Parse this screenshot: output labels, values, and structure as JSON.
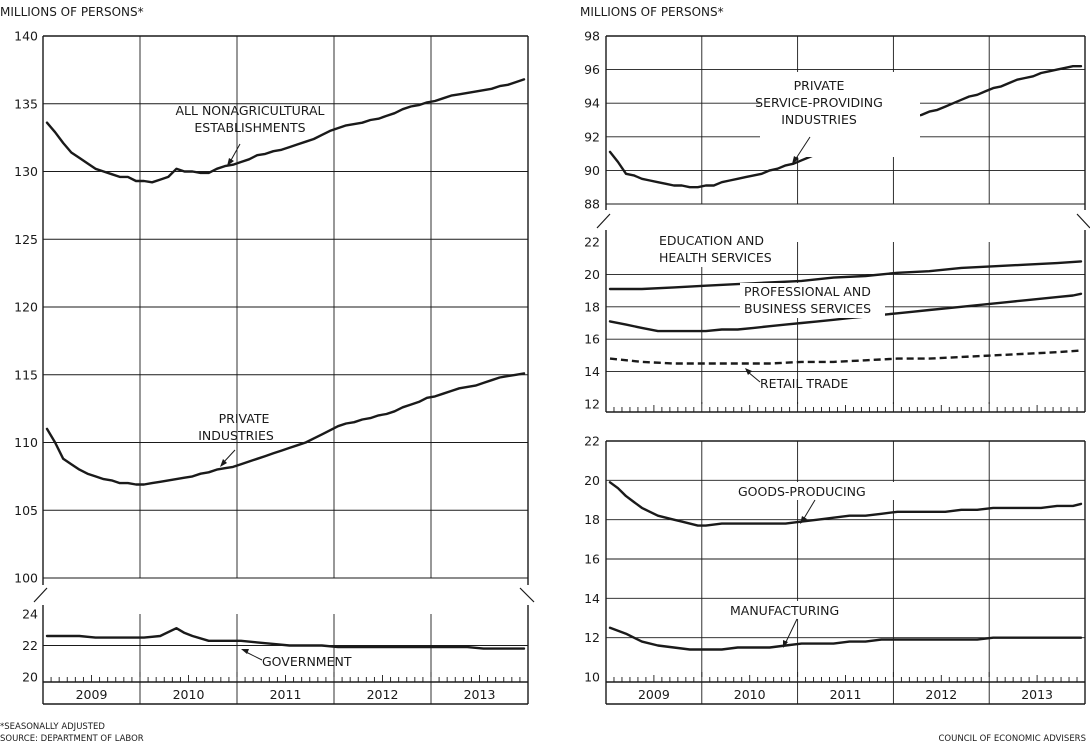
{
  "footnote": "*SEASONALLY ADJUSTED",
  "source": "SOURCE: DEPARTMENT OF LABOR",
  "credit": "COUNCIL OF ECONOMIC ADVISERS",
  "colors": {
    "line": "#1a1a1a",
    "grid": "#1a1a1a",
    "background": "#ffffff"
  },
  "chart_data": [
    {
      "type": "line",
      "panel": "left",
      "ylabel": "MILLIONS OF PERSONS*",
      "categories": [
        "2009",
        "2010",
        "2011",
        "2012",
        "2013"
      ],
      "x_unit": "month index from Jan 2009",
      "ylim": [
        100,
        140
      ],
      "yticks": [
        100,
        105,
        110,
        115,
        120,
        125,
        130,
        135,
        140
      ],
      "grid": true,
      "series": [
        {
          "name": "ALL NONAGRICULTURAL ESTABLISHMENTS",
          "style": "solid",
          "x": [
            0,
            1,
            2,
            3,
            4,
            5,
            6,
            7,
            8,
            9,
            10,
            11,
            12,
            13,
            14,
            15,
            16,
            17,
            18,
            19,
            20,
            21,
            22,
            23,
            24,
            25,
            26,
            27,
            28,
            29,
            30,
            31,
            32,
            33,
            34,
            35,
            36,
            37,
            38,
            39,
            40,
            41,
            42,
            43,
            44,
            45,
            46,
            47,
            48,
            49,
            50,
            51,
            52,
            53,
            54,
            55,
            56,
            57,
            58,
            59
          ],
          "values": [
            133.6,
            132.9,
            132.1,
            131.4,
            131.0,
            130.6,
            130.2,
            130.0,
            129.8,
            129.6,
            129.6,
            129.3,
            129.3,
            129.2,
            129.4,
            129.6,
            130.2,
            130.0,
            130.0,
            129.9,
            129.9,
            130.2,
            130.4,
            130.5,
            130.7,
            130.9,
            131.2,
            131.3,
            131.5,
            131.6,
            131.8,
            132.0,
            132.2,
            132.4,
            132.7,
            133.0,
            133.2,
            133.4,
            133.5,
            133.6,
            133.8,
            133.9,
            134.1,
            134.3,
            134.6,
            134.8,
            134.9,
            135.1,
            135.2,
            135.4,
            135.6,
            135.7,
            135.8,
            135.9,
            136.0,
            136.1,
            136.3,
            136.4,
            136.6,
            136.8
          ]
        },
        {
          "name": "PRIVATE INDUSTRIES",
          "style": "solid",
          "x": [
            0,
            1,
            2,
            3,
            4,
            5,
            6,
            7,
            8,
            9,
            10,
            11,
            12,
            13,
            14,
            15,
            16,
            17,
            18,
            19,
            20,
            21,
            22,
            23,
            24,
            25,
            26,
            27,
            28,
            29,
            30,
            31,
            32,
            33,
            34,
            35,
            36,
            37,
            38,
            39,
            40,
            41,
            42,
            43,
            44,
            45,
            46,
            47,
            48,
            49,
            50,
            51,
            52,
            53,
            54,
            55,
            56,
            57,
            58,
            59
          ],
          "values": [
            111.0,
            110.0,
            108.8,
            108.4,
            108.0,
            107.7,
            107.5,
            107.3,
            107.2,
            107.0,
            107.0,
            106.9,
            106.9,
            107.0,
            107.1,
            107.2,
            107.3,
            107.4,
            107.5,
            107.7,
            107.8,
            108.0,
            108.1,
            108.2,
            108.4,
            108.6,
            108.8,
            109.0,
            109.2,
            109.4,
            109.6,
            109.8,
            110.0,
            110.3,
            110.6,
            110.9,
            111.2,
            111.4,
            111.5,
            111.7,
            111.8,
            112.0,
            112.1,
            112.3,
            112.6,
            112.8,
            113.0,
            113.3,
            113.4,
            113.6,
            113.8,
            114.0,
            114.1,
            114.2,
            114.4,
            114.6,
            114.8,
            114.9,
            115.0,
            115.1
          ]
        }
      ],
      "annotations": [
        {
          "text": "ALL NONAGRICULTURAL",
          "series": "ALL NONAGRICULTURAL ESTABLISHMENTS"
        },
        {
          "text": "ESTABLISHMENTS",
          "series": "ALL NONAGRICULTURAL ESTABLISHMENTS"
        },
        {
          "text": "PRIVATE",
          "series": "PRIVATE INDUSTRIES"
        },
        {
          "text": "INDUSTRIES",
          "series": "PRIVATE INDUSTRIES"
        }
      ]
    },
    {
      "type": "line",
      "panel": "left-bottom",
      "categories": [
        "2009",
        "2010",
        "2011",
        "2012",
        "2013"
      ],
      "ylim": [
        20,
        24
      ],
      "yticks": [
        20,
        22,
        24
      ],
      "grid": true,
      "series": [
        {
          "name": "GOVERNMENT",
          "style": "solid",
          "x": [
            0,
            2,
            4,
            6,
            8,
            10,
            12,
            14,
            16,
            17,
            18,
            20,
            22,
            24,
            26,
            28,
            30,
            32,
            34,
            36,
            38,
            40,
            42,
            44,
            46,
            48,
            50,
            52,
            54,
            56,
            58,
            59
          ],
          "values": [
            22.6,
            22.6,
            22.6,
            22.5,
            22.5,
            22.5,
            22.5,
            22.6,
            23.1,
            22.8,
            22.6,
            22.3,
            22.3,
            22.3,
            22.2,
            22.1,
            22.0,
            22.0,
            22.0,
            21.9,
            21.9,
            21.9,
            21.9,
            21.9,
            21.9,
            21.9,
            21.9,
            21.9,
            21.8,
            21.8,
            21.8,
            21.8
          ]
        }
      ],
      "annotations": [
        {
          "text": "GOVERNMENT",
          "series": "GOVERNMENT"
        }
      ]
    },
    {
      "type": "line",
      "panel": "right-top",
      "ylabel": "MILLIONS OF PERSONS*",
      "categories": [
        "2009",
        "2010",
        "2011",
        "2012",
        "2013"
      ],
      "ylim": [
        88,
        98
      ],
      "yticks": [
        88,
        90,
        92,
        94,
        96,
        98
      ],
      "grid": true,
      "series": [
        {
          "name": "PRIVATE SERVICE-PROVIDING INDUSTRIES",
          "style": "solid",
          "x": [
            0,
            1,
            2,
            3,
            4,
            5,
            6,
            7,
            8,
            9,
            10,
            11,
            12,
            13,
            14,
            15,
            16,
            17,
            18,
            19,
            20,
            21,
            22,
            23,
            24,
            25,
            26,
            27,
            28,
            29,
            30,
            31,
            32,
            33,
            34,
            35,
            36,
            37,
            38,
            39,
            40,
            41,
            42,
            43,
            44,
            45,
            46,
            47,
            48,
            49,
            50,
            51,
            52,
            53,
            54,
            55,
            56,
            57,
            58,
            59
          ],
          "values": [
            91.1,
            90.5,
            89.8,
            89.7,
            89.5,
            89.4,
            89.3,
            89.2,
            89.1,
            89.1,
            89.0,
            89.0,
            89.1,
            89.1,
            89.3,
            89.4,
            89.5,
            89.6,
            89.7,
            89.8,
            90.0,
            90.1,
            90.3,
            90.4,
            90.6,
            90.8,
            91.0,
            91.2,
            91.4,
            91.5,
            91.7,
            91.9,
            92.1,
            92.3,
            92.5,
            92.7,
            92.9,
            93.1,
            93.2,
            93.3,
            93.5,
            93.6,
            93.8,
            94.0,
            94.2,
            94.4,
            94.5,
            94.7,
            94.9,
            95.0,
            95.2,
            95.4,
            95.5,
            95.6,
            95.8,
            95.9,
            96.0,
            96.1,
            96.2,
            96.2
          ]
        }
      ],
      "annotations": [
        {
          "text": "PRIVATE",
          "series": "PRIVATE SERVICE-PROVIDING INDUSTRIES"
        },
        {
          "text": "SERVICE-PROVIDING",
          "series": "PRIVATE SERVICE-PROVIDING INDUSTRIES"
        },
        {
          "text": "INDUSTRIES",
          "series": "PRIVATE SERVICE-PROVIDING INDUSTRIES"
        }
      ]
    },
    {
      "type": "line",
      "panel": "right-middle",
      "categories": [
        "2009",
        "2010",
        "2011",
        "2012",
        "2013"
      ],
      "ylim": [
        12,
        22
      ],
      "yticks": [
        12,
        14,
        16,
        18,
        20,
        22
      ],
      "grid": true,
      "series": [
        {
          "name": "EDUCATION AND HEALTH SERVICES",
          "style": "solid",
          "x": [
            0,
            4,
            8,
            12,
            16,
            20,
            24,
            28,
            32,
            36,
            40,
            44,
            48,
            52,
            56,
            59
          ],
          "values": [
            19.1,
            19.1,
            19.2,
            19.3,
            19.4,
            19.5,
            19.6,
            19.8,
            19.9,
            20.1,
            20.2,
            20.4,
            20.5,
            20.6,
            20.7,
            20.8
          ]
        },
        {
          "name": "PROFESSIONAL AND BUSINESS SERVICES",
          "style": "solid",
          "x": [
            0,
            2,
            4,
            6,
            8,
            10,
            12,
            14,
            16,
            18,
            20,
            22,
            24,
            26,
            28,
            30,
            32,
            34,
            36,
            38,
            40,
            42,
            44,
            46,
            48,
            50,
            52,
            54,
            56,
            58,
            59
          ],
          "values": [
            17.1,
            16.9,
            16.7,
            16.5,
            16.5,
            16.5,
            16.5,
            16.6,
            16.6,
            16.7,
            16.8,
            16.9,
            17.0,
            17.1,
            17.2,
            17.3,
            17.4,
            17.5,
            17.6,
            17.7,
            17.8,
            17.9,
            18.0,
            18.1,
            18.2,
            18.3,
            18.4,
            18.5,
            18.6,
            18.7,
            18.8
          ]
        },
        {
          "name": "RETAIL TRADE",
          "style": "dashed",
          "x": [
            0,
            4,
            8,
            12,
            16,
            20,
            24,
            28,
            32,
            36,
            40,
            44,
            48,
            52,
            56,
            59
          ],
          "values": [
            14.8,
            14.6,
            14.5,
            14.5,
            14.5,
            14.5,
            14.6,
            14.6,
            14.7,
            14.8,
            14.8,
            14.9,
            15.0,
            15.1,
            15.2,
            15.3
          ]
        }
      ],
      "annotations": [
        {
          "text": "EDUCATION AND",
          "series": "EDUCATION AND HEALTH SERVICES"
        },
        {
          "text": "HEALTH SERVICES",
          "series": "EDUCATION AND HEALTH SERVICES"
        },
        {
          "text": "PROFESSIONAL AND",
          "series": "PROFESSIONAL AND BUSINESS SERVICES"
        },
        {
          "text": "BUSINESS SERVICES",
          "series": "PROFESSIONAL AND BUSINESS SERVICES"
        },
        {
          "text": "RETAIL TRADE",
          "series": "RETAIL TRADE"
        }
      ]
    },
    {
      "type": "line",
      "panel": "right-bottom",
      "categories": [
        "2009",
        "2010",
        "2011",
        "2012",
        "2013"
      ],
      "ylim": [
        10,
        22
      ],
      "yticks": [
        10,
        12,
        14,
        16,
        18,
        20,
        22
      ],
      "grid": true,
      "series": [
        {
          "name": "GOODS-PRODUCING",
          "style": "solid",
          "x": [
            0,
            1,
            2,
            3,
            4,
            5,
            6,
            7,
            8,
            9,
            10,
            11,
            12,
            14,
            16,
            18,
            20,
            22,
            24,
            26,
            28,
            30,
            32,
            34,
            36,
            38,
            40,
            42,
            44,
            46,
            48,
            50,
            52,
            54,
            56,
            58,
            59
          ],
          "values": [
            19.9,
            19.6,
            19.2,
            18.9,
            18.6,
            18.4,
            18.2,
            18.1,
            18.0,
            17.9,
            17.8,
            17.7,
            17.7,
            17.8,
            17.8,
            17.8,
            17.8,
            17.8,
            17.9,
            18.0,
            18.1,
            18.2,
            18.2,
            18.3,
            18.4,
            18.4,
            18.4,
            18.4,
            18.5,
            18.5,
            18.6,
            18.6,
            18.6,
            18.6,
            18.7,
            18.7,
            18.8
          ]
        },
        {
          "name": "MANUFACTURING",
          "style": "solid",
          "x": [
            0,
            2,
            4,
            6,
            8,
            10,
            12,
            14,
            16,
            18,
            20,
            22,
            24,
            26,
            28,
            30,
            32,
            34,
            36,
            38,
            40,
            42,
            44,
            46,
            48,
            50,
            52,
            54,
            56,
            58,
            59
          ],
          "values": [
            12.5,
            12.2,
            11.8,
            11.6,
            11.5,
            11.4,
            11.4,
            11.4,
            11.5,
            11.5,
            11.5,
            11.6,
            11.7,
            11.7,
            11.7,
            11.8,
            11.8,
            11.9,
            11.9,
            11.9,
            11.9,
            11.9,
            11.9,
            11.9,
            12.0,
            12.0,
            12.0,
            12.0,
            12.0,
            12.0,
            12.0
          ]
        }
      ],
      "annotations": [
        {
          "text": "GOODS-PRODUCING",
          "series": "GOODS-PRODUCING"
        },
        {
          "text": "MANUFACTURING",
          "series": "MANUFACTURING"
        }
      ]
    }
  ]
}
